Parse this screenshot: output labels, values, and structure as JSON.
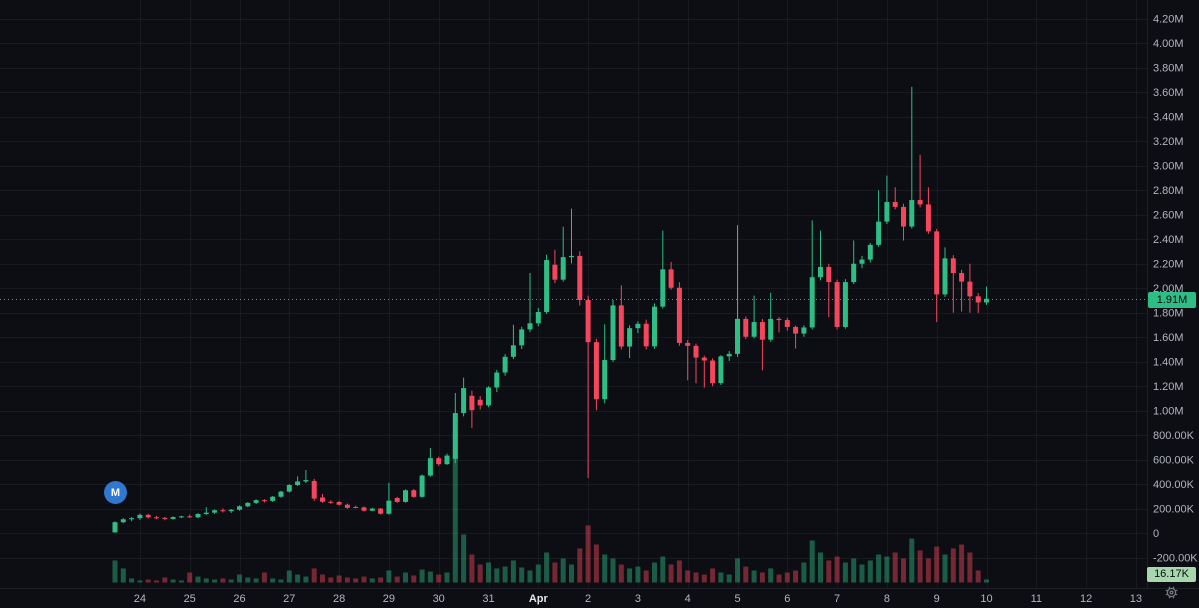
{
  "chart_data": {
    "type": "candlestick",
    "title": "",
    "interval_note": "4h candles with volume sub-pane",
    "y_ticks": [
      {
        "label": "4.20M",
        "k": 4200
      },
      {
        "label": "4.00M",
        "k": 4000
      },
      {
        "label": "3.80M",
        "k": 3800
      },
      {
        "label": "3.60M",
        "k": 3600
      },
      {
        "label": "3.40M",
        "k": 3400
      },
      {
        "label": "3.20M",
        "k": 3200
      },
      {
        "label": "3.00M",
        "k": 3000
      },
      {
        "label": "2.80M",
        "k": 2800
      },
      {
        "label": "2.60M",
        "k": 2600
      },
      {
        "label": "2.40M",
        "k": 2400
      },
      {
        "label": "2.20M",
        "k": 2200
      },
      {
        "label": "2.00M",
        "k": 2000
      },
      {
        "label": "1.80M",
        "k": 1800
      },
      {
        "label": "1.60M",
        "k": 1600
      },
      {
        "label": "1.40M",
        "k": 1400
      },
      {
        "label": "1.20M",
        "k": 1200
      },
      {
        "label": "1.00M",
        "k": 1000
      },
      {
        "label": "800.00K",
        "k": 800
      },
      {
        "label": "600.00K",
        "k": 600
      },
      {
        "label": "400.00K",
        "k": 400
      },
      {
        "label": "200.00K",
        "k": 200
      },
      {
        "label": "0",
        "k": 0
      },
      {
        "label": "-200.00K",
        "k": -200
      }
    ],
    "x_ticks": [
      {
        "label": "24",
        "i": 3
      },
      {
        "label": "25",
        "i": 9
      },
      {
        "label": "26",
        "i": 15
      },
      {
        "label": "27",
        "i": 21
      },
      {
        "label": "28",
        "i": 27
      },
      {
        "label": "29",
        "i": 33
      },
      {
        "label": "30",
        "i": 39
      },
      {
        "label": "31",
        "i": 45
      },
      {
        "label": "Apr",
        "i": 51,
        "major": true
      },
      {
        "label": "2",
        "i": 57
      },
      {
        "label": "3",
        "i": 63
      },
      {
        "label": "4",
        "i": 69
      },
      {
        "label": "5",
        "i": 75
      },
      {
        "label": "6",
        "i": 81
      },
      {
        "label": "7",
        "i": 87
      },
      {
        "label": "8",
        "i": 93
      },
      {
        "label": "9",
        "i": 99
      },
      {
        "label": "10",
        "i": 105
      },
      {
        "label": "11",
        "i": 111
      },
      {
        "label": "12",
        "i": 117
      },
      {
        "label": "13",
        "i": 123
      }
    ],
    "y_range_k": [
      -449,
      4351
    ],
    "grid": true,
    "last_price_label": "1.91M",
    "last_price_k": 1912,
    "last_volume_label": "16.17K",
    "candles_ohlcv_k": [
      [
        5,
        95,
        2,
        88,
        119
      ],
      [
        88,
        122,
        80,
        112,
        76
      ],
      [
        112,
        130,
        96,
        121,
        22
      ],
      [
        121,
        158,
        108,
        148,
        11
      ],
      [
        148,
        157,
        118,
        128,
        16
      ],
      [
        128,
        140,
        114,
        124,
        11
      ],
      [
        124,
        131,
        104,
        115,
        27
      ],
      [
        115,
        136,
        109,
        130,
        16
      ],
      [
        130,
        141,
        121,
        136,
        11
      ],
      [
        136,
        150,
        123,
        128,
        54
      ],
      [
        128,
        162,
        120,
        155,
        32
      ],
      [
        155,
        210,
        148,
        166,
        22
      ],
      [
        166,
        192,
        156,
        186,
        16
      ],
      [
        186,
        201,
        168,
        178,
        22
      ],
      [
        178,
        196,
        164,
        190,
        16
      ],
      [
        190,
        224,
        182,
        218,
        43
      ],
      [
        218,
        252,
        210,
        246,
        27
      ],
      [
        246,
        275,
        236,
        268,
        22
      ],
      [
        268,
        276,
        248,
        262,
        54
      ],
      [
        262,
        302,
        254,
        296,
        22
      ],
      [
        296,
        344,
        288,
        338,
        16
      ],
      [
        338,
        398,
        330,
        392,
        65
      ],
      [
        392,
        462,
        384,
        421,
        43
      ],
      [
        421,
        514,
        408,
        432,
        32
      ],
      [
        425,
        442,
        262,
        281,
        76
      ],
      [
        290,
        318,
        246,
        255,
        43
      ],
      [
        255,
        266,
        238,
        247,
        27
      ],
      [
        253,
        262,
        224,
        231,
        38
      ],
      [
        231,
        240,
        198,
        205,
        27
      ],
      [
        212,
        224,
        202,
        209,
        22
      ],
      [
        209,
        216,
        176,
        182,
        32
      ],
      [
        182,
        206,
        178,
        199,
        22
      ],
      [
        199,
        204,
        150,
        157,
        27
      ],
      [
        157,
        410,
        150,
        264,
        65
      ],
      [
        286,
        295,
        246,
        254,
        32
      ],
      [
        254,
        356,
        248,
        349,
        54
      ],
      [
        349,
        358,
        288,
        295,
        38
      ],
      [
        295,
        478,
        290,
        469,
        70
      ],
      [
        469,
        694,
        460,
        611,
        59
      ],
      [
        611,
        624,
        548,
        562,
        43
      ],
      [
        562,
        648,
        556,
        632,
        54
      ],
      [
        605,
        1143,
        570,
        979,
        820
      ],
      [
        979,
        1268,
        952,
        1183,
        259
      ],
      [
        1120,
        1162,
        858,
        1003,
        151
      ],
      [
        1088,
        1118,
        1008,
        1042,
        97
      ],
      [
        1042,
        1198,
        1028,
        1188,
        108
      ],
      [
        1188,
        1332,
        1150,
        1310,
        76
      ],
      [
        1310,
        1460,
        1284,
        1438,
        86
      ],
      [
        1438,
        1700,
        1420,
        1532,
        119
      ],
      [
        1532,
        1684,
        1502,
        1662,
        81
      ],
      [
        1662,
        2122,
        1640,
        1712,
        65
      ],
      [
        1712,
        1838,
        1688,
        1804,
        97
      ],
      [
        1804,
        2272,
        1788,
        2228,
        162
      ],
      [
        2190,
        2312,
        2040,
        2068,
        108
      ],
      [
        2068,
        2500,
        2052,
        2252,
        130
      ],
      [
        2252,
        2648,
        2200,
        2262,
        97
      ],
      [
        2262,
        2300,
        1856,
        1902,
        184
      ],
      [
        1902,
        1938,
        449,
        1558,
        308
      ],
      [
        1558,
        1586,
        1002,
        1092,
        205
      ],
      [
        1092,
        1704,
        1058,
        1412,
        151
      ],
      [
        1412,
        1902,
        1396,
        1858,
        130
      ],
      [
        1858,
        2022,
        1498,
        1522,
        97
      ],
      [
        1522,
        1696,
        1428,
        1672,
        76
      ],
      [
        1672,
        1728,
        1632,
        1708,
        86
      ],
      [
        1708,
        1742,
        1498,
        1524,
        65
      ],
      [
        1524,
        1874,
        1504,
        1848,
        108
      ],
      [
        1848,
        2468,
        1832,
        2152,
        140
      ],
      [
        2152,
        2212,
        1986,
        2002,
        97
      ],
      [
        2002,
        2048,
        1528,
        1552,
        119
      ],
      [
        1552,
        1576,
        1246,
        1528,
        65
      ],
      [
        1528,
        1546,
        1222,
        1432,
        54
      ],
      [
        1432,
        1448,
        1186,
        1408,
        43
      ],
      [
        1408,
        1426,
        1198,
        1224,
        76
      ],
      [
        1224,
        1452,
        1208,
        1442,
        54
      ],
      [
        1442,
        1486,
        1404,
        1462,
        43
      ],
      [
        1462,
        2512,
        1438,
        1748,
        130
      ],
      [
        1748,
        1768,
        1582,
        1602,
        86
      ],
      [
        1602,
        1938,
        1588,
        1722,
        65
      ],
      [
        1722,
        1748,
        1328,
        1578,
        54
      ],
      [
        1578,
        1962,
        1560,
        1748,
        76
      ],
      [
        1748,
        1762,
        1638,
        1738,
        43
      ],
      [
        1738,
        1756,
        1652,
        1682,
        54
      ],
      [
        1682,
        1694,
        1506,
        1628,
        65
      ],
      [
        1628,
        1696,
        1602,
        1678,
        108
      ],
      [
        1678,
        2552,
        1662,
        2088,
        227
      ],
      [
        2088,
        2468,
        2062,
        2172,
        162
      ],
      [
        2172,
        2198,
        1762,
        2048,
        119
      ],
      [
        2048,
        2068,
        1662,
        1682,
        140
      ],
      [
        1682,
        2072,
        1668,
        2048,
        108
      ],
      [
        2048,
        2388,
        2032,
        2198,
        130
      ],
      [
        2198,
        2262,
        2162,
        2232,
        97
      ],
      [
        2232,
        2368,
        2208,
        2352,
        119
      ],
      [
        2352,
        2798,
        2336,
        2542,
        151
      ],
      [
        2542,
        2918,
        2522,
        2702,
        140
      ],
      [
        2702,
        2822,
        2642,
        2662,
        162
      ],
      [
        2662,
        2688,
        2388,
        2502,
        130
      ],
      [
        2502,
        3642,
        2486,
        2718,
        237
      ],
      [
        2718,
        3088,
        2658,
        2682,
        173
      ],
      [
        2682,
        2822,
        2442,
        2462,
        130
      ],
      [
        2462,
        2482,
        1722,
        1948,
        194
      ],
      [
        1948,
        2332,
        1928,
        2242,
        151
      ],
      [
        2242,
        2268,
        1798,
        2122,
        184
      ],
      [
        2122,
        2148,
        1808,
        2052,
        205
      ],
      [
        2052,
        2198,
        1798,
        1932,
        162
      ],
      [
        1932,
        1958,
        1796,
        1882,
        65
      ],
      [
        1882,
        2012,
        1862,
        1912,
        16.17
      ]
    ],
    "colors": {
      "background": "#0c0e13",
      "up": "#2ebd85",
      "down": "#f6465d",
      "up_volume": "rgba(46,189,133,0.45)",
      "down_volume": "rgba(246,70,93,0.45)",
      "grid": "rgba(255,255,255,0.05)",
      "axis_text": "#b2b5be",
      "axis_text_major": "#e6e8ec",
      "separator": "rgba(255,255,255,0.08)",
      "price_line": "#2ebd85",
      "price_badge_bg": "#2ebd85",
      "volume_badge_bg": "#a6d7ad",
      "logo_bg": "#3077cf"
    },
    "legend_position": "none"
  },
  "ui": {
    "logo_letter": "M",
    "settings_icon": "gear-icon"
  }
}
